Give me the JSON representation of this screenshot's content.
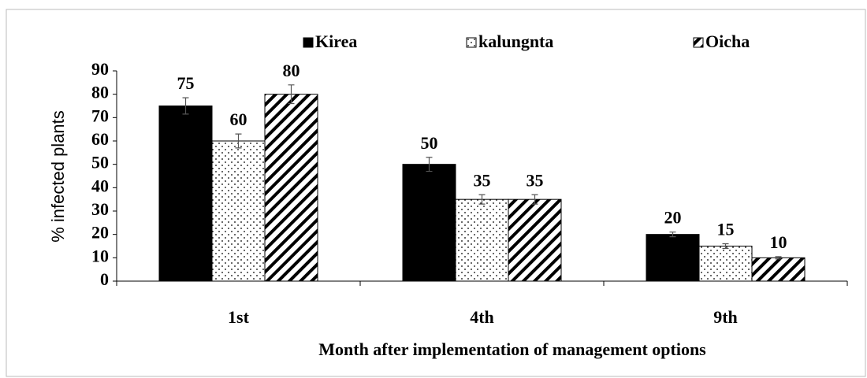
{
  "chart_data": {
    "type": "bar",
    "ylabel": "% infected plants",
    "xlabel": "Month after implementation of management options",
    "categories": [
      "1st",
      "4th",
      "9th"
    ],
    "series": [
      {
        "name": "Kirea",
        "color": "#000000",
        "pattern": "solid",
        "values": [
          75,
          50,
          20
        ],
        "errors": [
          3.5,
          3,
          1
        ]
      },
      {
        "name": "kalungnta",
        "color": "#ffffff",
        "pattern": "dots",
        "values": [
          60,
          35,
          15
        ],
        "errors": [
          3,
          2,
          1
        ]
      },
      {
        "name": "Oicha",
        "color": "#ffffff",
        "pattern": "hatch",
        "values": [
          80,
          35,
          10
        ],
        "errors": [
          4,
          2,
          0.5
        ]
      }
    ],
    "ylim": [
      0,
      90
    ],
    "yticks": [
      0,
      10,
      20,
      30,
      40,
      50,
      60,
      70,
      80,
      90
    ],
    "grid": false,
    "legend": "top"
  }
}
